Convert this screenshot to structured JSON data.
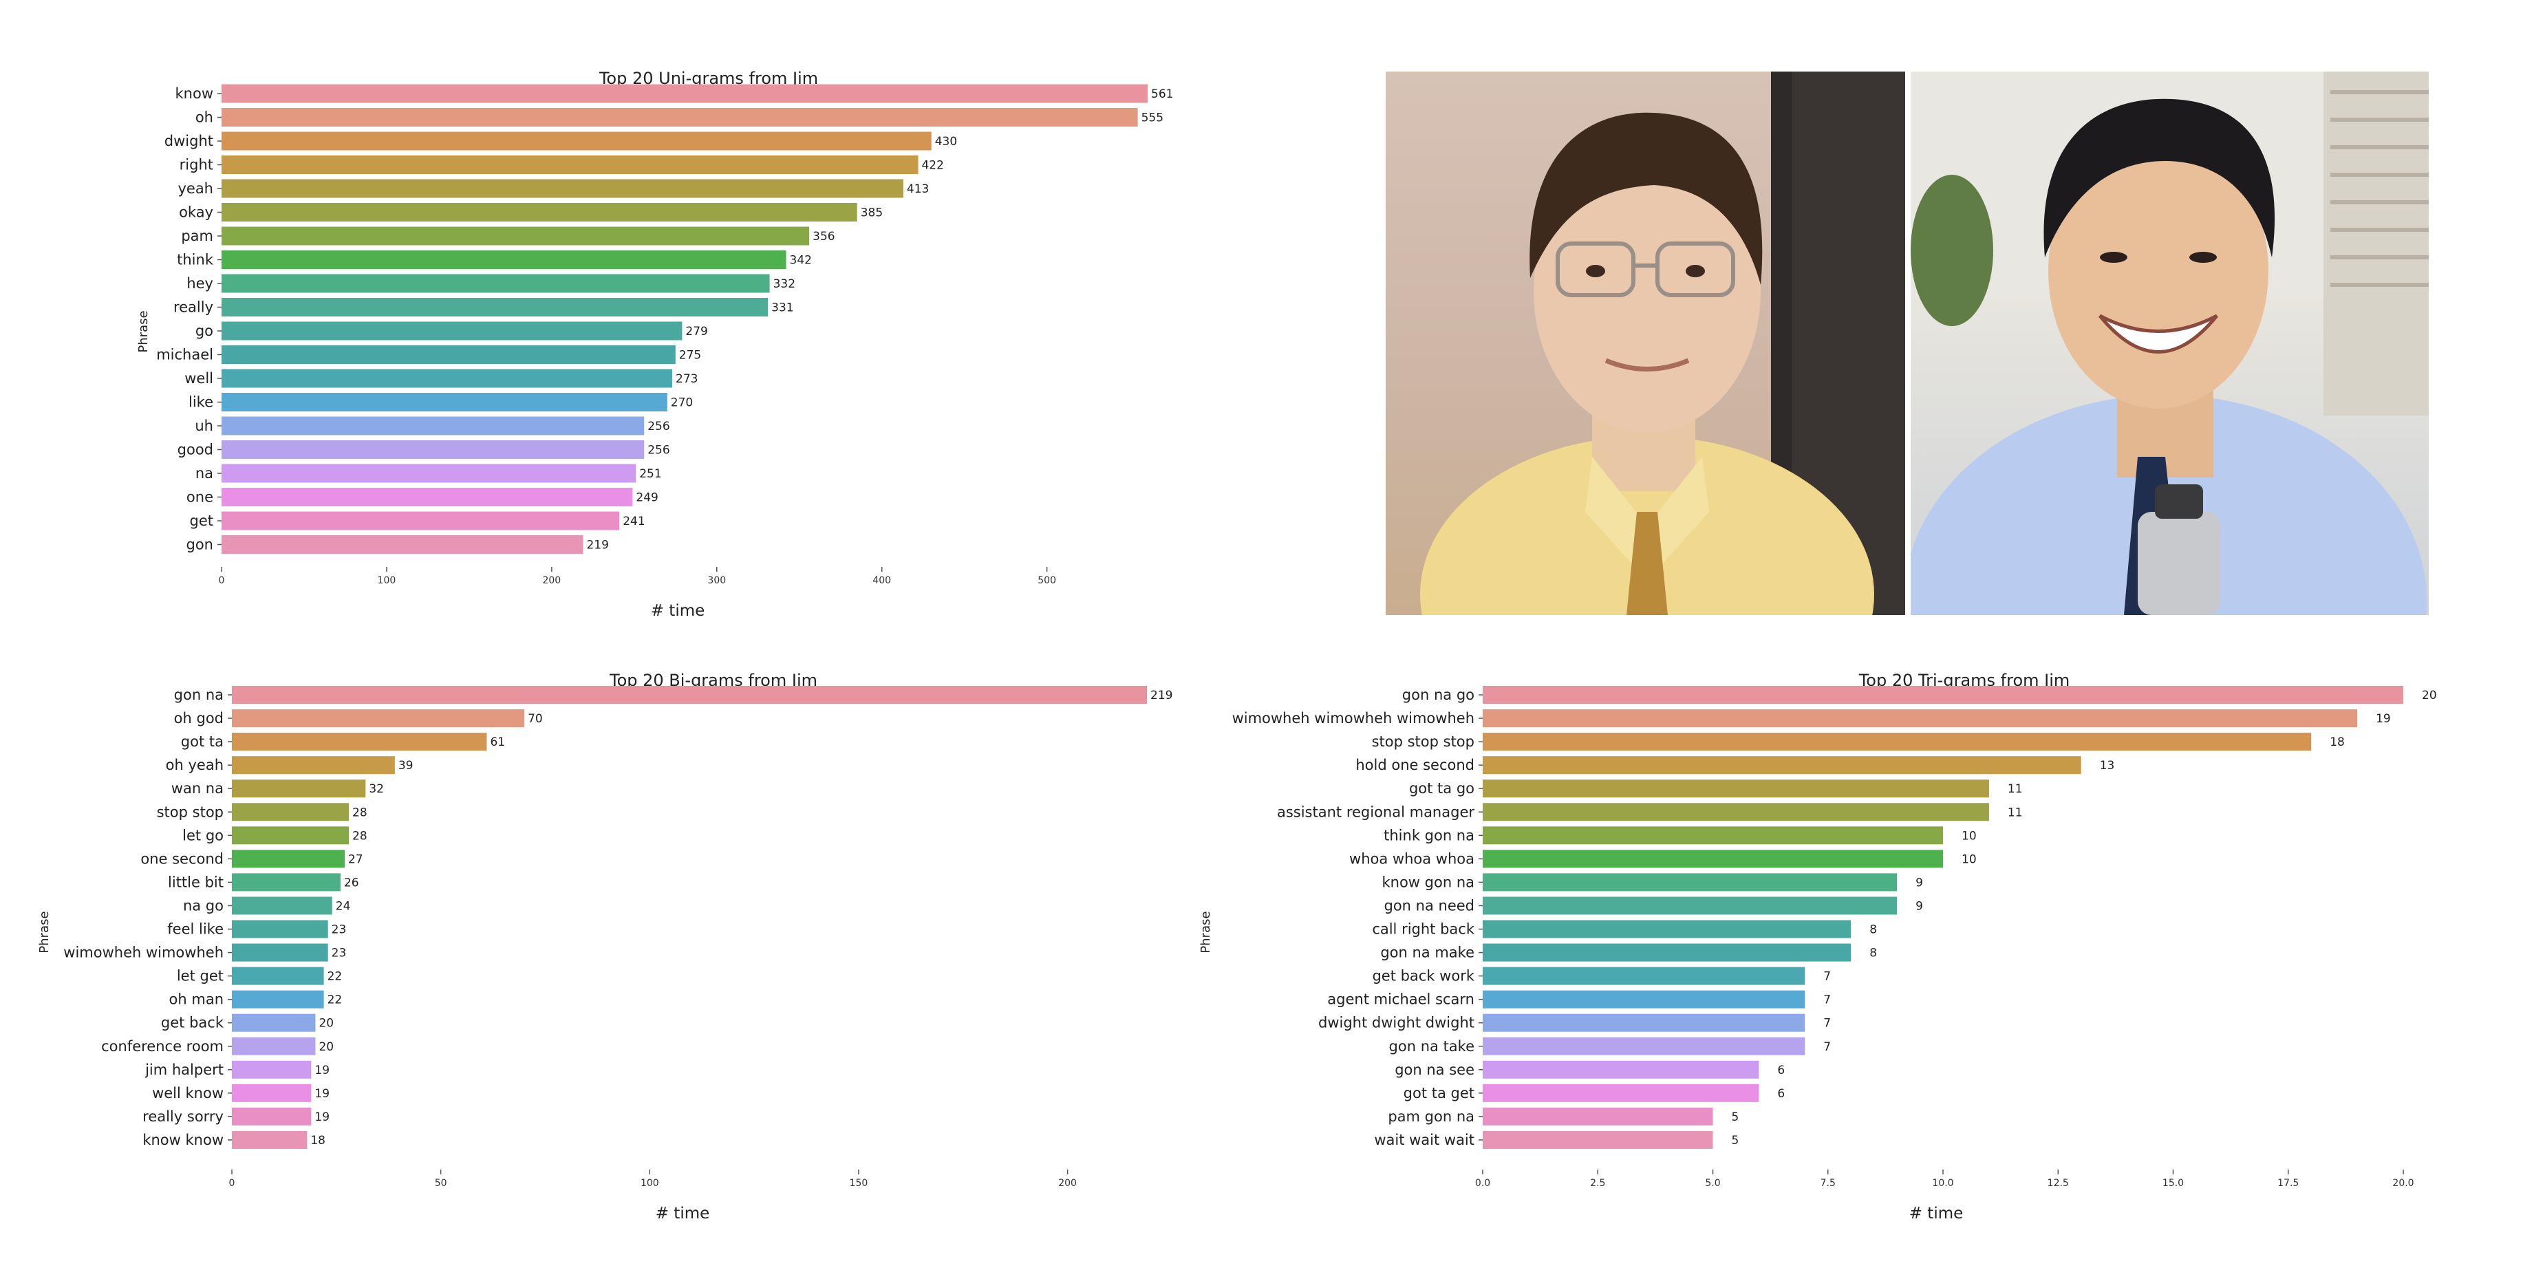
{
  "chart_data": [
    {
      "type": "bar",
      "orientation": "horizontal",
      "title": "Top 20 Uni-grams from Jim",
      "xlabel": "# time",
      "ylabel": "Phrase",
      "categories": [
        "know",
        "oh",
        "dwight",
        "right",
        "yeah",
        "okay",
        "pam",
        "think",
        "hey",
        "really",
        "go",
        "michael",
        "well",
        "like",
        "uh",
        "good",
        "na",
        "one",
        "get",
        "gon"
      ],
      "values": [
        561,
        555,
        430,
        422,
        413,
        385,
        356,
        342,
        332,
        331,
        279,
        275,
        273,
        270,
        256,
        256,
        251,
        249,
        241,
        219
      ],
      "xticks": [
        "0",
        "100",
        "200",
        "300",
        "400",
        "500"
      ],
      "xlim": [
        0,
        561
      ],
      "grid": false,
      "data_labels": true
    },
    {
      "type": "bar",
      "orientation": "horizontal",
      "title": "Top 20 Bi-grams from Jim",
      "xlabel": "# time",
      "ylabel": "Phrase",
      "categories": [
        "gon na",
        "oh god",
        "got ta",
        "oh yeah",
        "wan na",
        "stop stop",
        "let go",
        "one second",
        "little bit",
        "na go",
        "feel like",
        "wimowheh wimowheh",
        "let get",
        "oh man",
        "get back",
        "conference room",
        "jim halpert",
        "well know",
        "really sorry",
        "know know"
      ],
      "values": [
        219,
        70,
        61,
        39,
        32,
        28,
        28,
        27,
        26,
        24,
        23,
        23,
        22,
        22,
        20,
        20,
        19,
        19,
        19,
        18
      ],
      "xticks": [
        "0",
        "50",
        "100",
        "150",
        "200"
      ],
      "xlim": [
        0,
        219
      ],
      "grid": false,
      "data_labels": true
    },
    {
      "type": "bar",
      "orientation": "horizontal",
      "title": "Top 20 Tri-grams from Jim",
      "xlabel": "# time",
      "ylabel": "Phrase",
      "categories": [
        "gon na go",
        "wimowheh wimowheh wimowheh",
        "stop stop stop",
        "hold one second",
        "got ta go",
        "assistant regional manager",
        "think gon na",
        "whoa whoa whoa",
        "know gon na",
        "gon na need",
        "call right back",
        "gon na make",
        "get back work",
        "agent michael scarn",
        "dwight dwight dwight",
        "gon na take",
        "gon na see",
        "got ta get",
        "pam gon na",
        "wait wait wait"
      ],
      "values": [
        20,
        19,
        18,
        13,
        11,
        11,
        10,
        10,
        9,
        9,
        8,
        8,
        7,
        7,
        7,
        7,
        6,
        6,
        5,
        5
      ],
      "xticks": [
        "0.0",
        "2.5",
        "5.0",
        "7.5",
        "10.0",
        "12.5",
        "15.0",
        "17.5",
        "20.0"
      ],
      "xlim": [
        0,
        20
      ],
      "grid": false,
      "data_labels": true
    }
  ],
  "colors": [
    "#e8949f",
    "#e39880",
    "#d49452",
    "#c69a47",
    "#b09e45",
    "#9aa446",
    "#86a846",
    "#4eb04f",
    "#4daf86",
    "#4dac95",
    "#4aa99f",
    "#48a7a5",
    "#4aa8b0",
    "#55a9d3",
    "#8ba9e6",
    "#b6a3ed",
    "#cd9bef",
    "#e98fe6",
    "#e98fc5",
    "#e894b4"
  ],
  "photos": {
    "left": {
      "description_icon": "person-portrait"
    },
    "right": {
      "description_icon": "person-portrait"
    }
  }
}
